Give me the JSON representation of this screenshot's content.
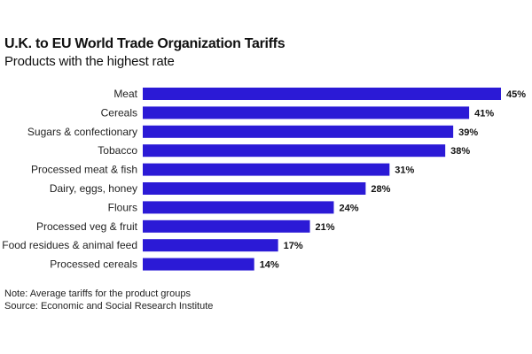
{
  "chart_data": {
    "type": "bar",
    "orientation": "horizontal",
    "title": "U.K. to EU World Trade Organization Tariffs",
    "subtitle": "Products with the highest rate",
    "categories": [
      "Meat",
      "Cereals",
      "Sugars & confectionary",
      "Tobacco",
      "Processed meat & fish",
      "Dairy, eggs, honey",
      "Flours",
      "Processed veg & fruit",
      "Food residues & animal feed",
      "Processed cereals"
    ],
    "values": [
      45,
      41,
      39,
      38,
      31,
      28,
      24,
      21,
      17,
      14
    ],
    "value_labels": [
      "45%",
      "41%",
      "39%",
      "38%",
      "31%",
      "28%",
      "24%",
      "21%",
      "17%",
      "14%"
    ],
    "unit": "%",
    "xlim": [
      0,
      45
    ],
    "bar_color": "#2b1ad6",
    "xlabel": "",
    "ylabel": "",
    "grid": false
  },
  "notes": {
    "note": "Note: Average tariffs for the product groups",
    "source": "Source: Economic and Social Research Institute"
  }
}
